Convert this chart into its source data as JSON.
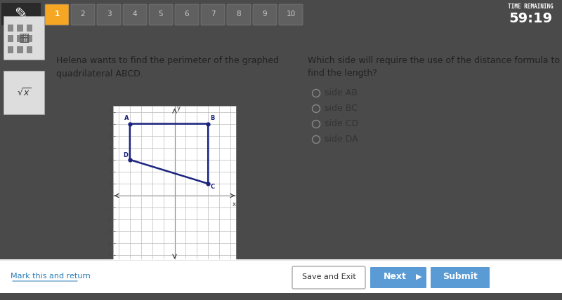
{
  "bg_color": "#4a4a4a",
  "toolbar_color": "#3a3a3a",
  "content_bg": "#ffffff",
  "left_panel_bg": "#5a5a5a",
  "active_tab_color": "#f5a623",
  "tab_numbers": [
    "1",
    "2",
    "3",
    "4",
    "5",
    "6",
    "7",
    "8",
    "9",
    "10"
  ],
  "time_label": "TIME REMAINING",
  "time_value": "59:19",
  "question_left": "Helena wants to find the perimeter of the graphed\nquadrilateral ABCD.",
  "question_right_line1": "Which side will require the use of the distance formula to",
  "question_right_line2": "find the length?",
  "radio_options": [
    "side AB",
    "side BC",
    "side CD",
    "side DA"
  ],
  "points": {
    "A": [
      -4,
      6
    ],
    "B": [
      3,
      6
    ],
    "C": [
      3,
      1
    ],
    "D": [
      -4,
      3
    ]
  },
  "quad_color": "#1a237e",
  "grid_color": "#bbbbbb",
  "axis_color": "#555555",
  "tick_color": "#444444",
  "xlim": [
    -5.5,
    5.5
  ],
  "ylim": [
    -5.5,
    7.5
  ],
  "footer_bg": "#ffffff",
  "footer_outer_bg": "#4a4a4a",
  "btn_save_label": "Save and Exit",
  "btn_next_label": "Next",
  "btn_submit_label": "Submit",
  "btn_next_color": "#5b9bd5",
  "btn_submit_color": "#5b9bd5",
  "footer_link": "Mark this and return",
  "footer_link_color": "#2a7db5"
}
